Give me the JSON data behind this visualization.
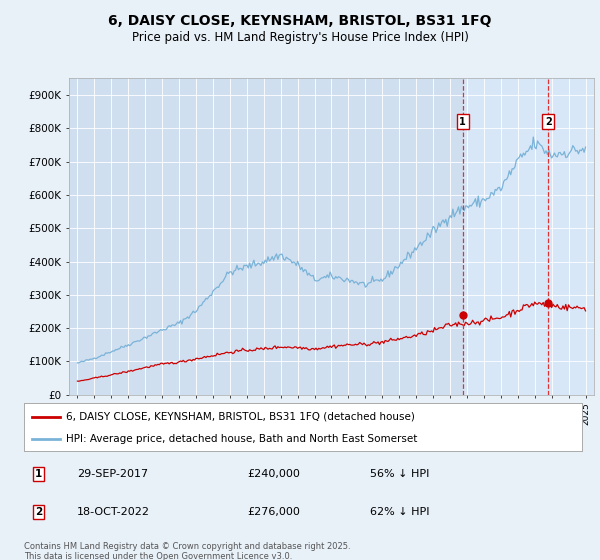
{
  "title": "6, DAISY CLOSE, KEYNSHAM, BRISTOL, BS31 1FQ",
  "subtitle": "Price paid vs. HM Land Registry's House Price Index (HPI)",
  "background_color": "#e8f0f8",
  "plot_bg_color": "#d0dff0",
  "plot_bg_highlight": "#ddeeff",
  "ylabel": "",
  "xlabel": "",
  "ylim": [
    0,
    950000
  ],
  "yticks": [
    0,
    100000,
    200000,
    300000,
    400000,
    500000,
    600000,
    700000,
    800000,
    900000
  ],
  "ytick_labels": [
    "£0",
    "£100K",
    "£200K",
    "£300K",
    "£400K",
    "£500K",
    "£600K",
    "£700K",
    "£800K",
    "£900K"
  ],
  "xlim_start": 1994.5,
  "xlim_end": 2025.5,
  "hpi_color": "#7ab3d8",
  "price_color": "#cc0000",
  "vline_color": "#dd3333",
  "marker1_date_x": 2017.75,
  "marker2_date_x": 2022.8,
  "marker1_price": 240000,
  "marker2_price": 276000,
  "marker1_label": "29-SEP-2017",
  "marker2_label": "18-OCT-2022",
  "marker1_pct": "56% ↓ HPI",
  "marker2_pct": "62% ↓ HPI",
  "legend_line1": "6, DAISY CLOSE, KEYNSHAM, BRISTOL, BS31 1FQ (detached house)",
  "legend_line2": "HPI: Average price, detached house, Bath and North East Somerset",
  "footnote": "Contains HM Land Registry data © Crown copyright and database right 2025.\nThis data is licensed under the Open Government Licence v3.0."
}
